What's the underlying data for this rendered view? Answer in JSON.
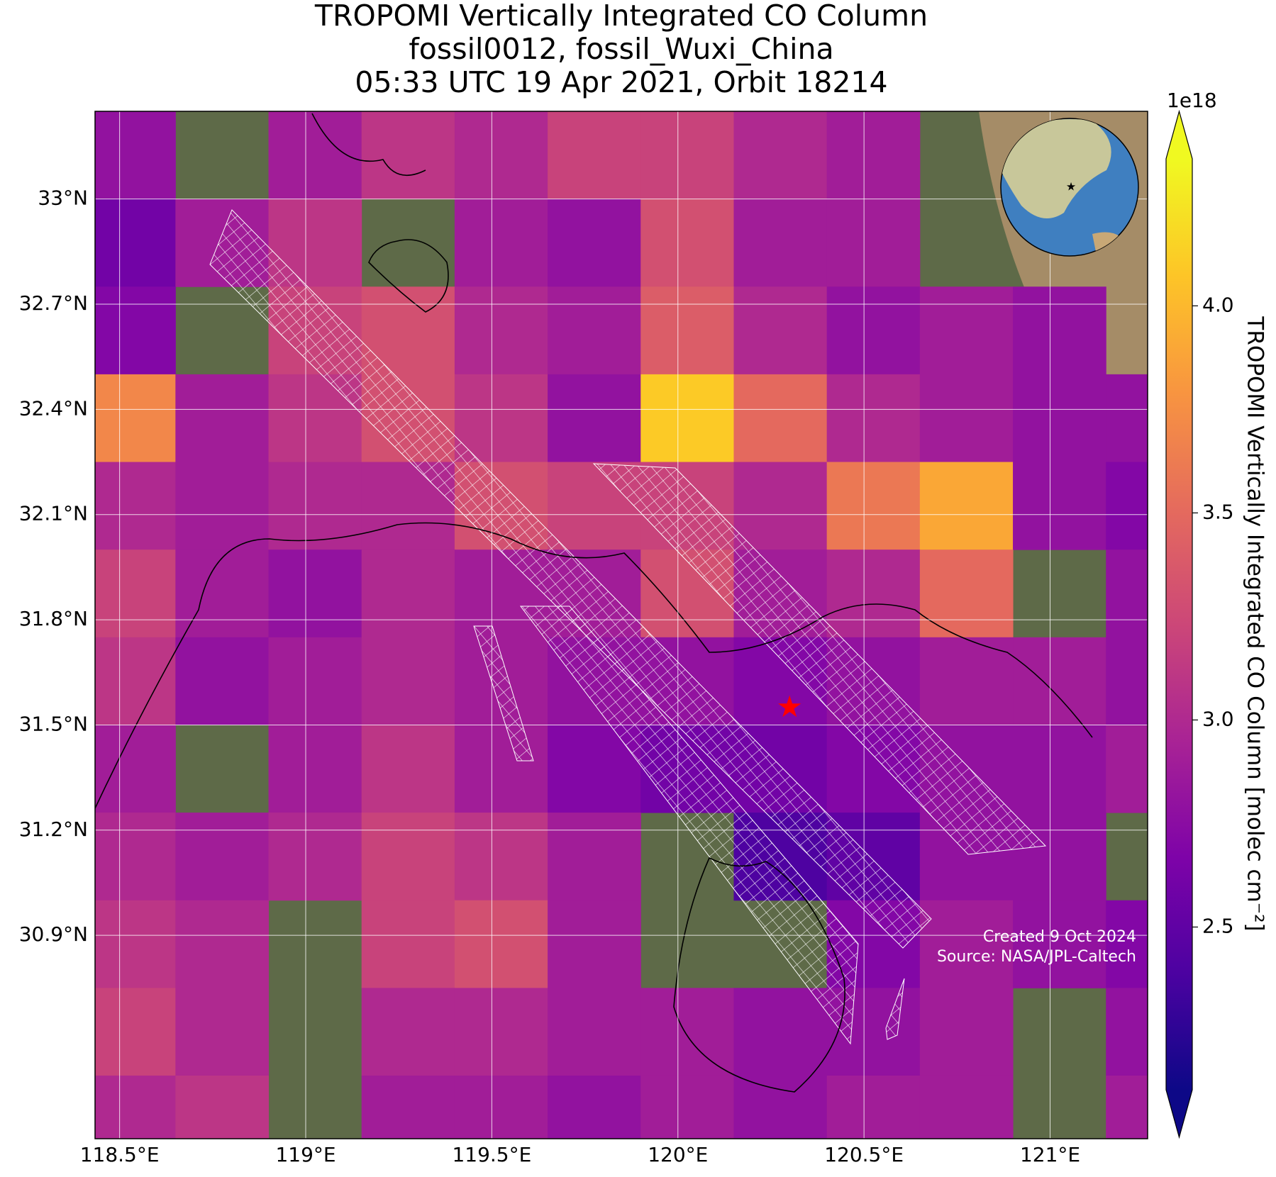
{
  "chart_data": {
    "type": "heatmap-map",
    "title": [
      "TROPOMI Vertically Integrated CO Column",
      "fossil0012, fossil_Wuxi_China",
      "05:33 UTC 19 Apr 2021, Orbit 18214"
    ],
    "xlim": [
      118.434,
      121.262
    ],
    "ylim": [
      30.32,
      33.25
    ],
    "xticks": [
      {
        "value": 118.5,
        "label": "118.5°E"
      },
      {
        "value": 119,
        "label": "119°E"
      },
      {
        "value": 119.5,
        "label": "119.5°E"
      },
      {
        "value": 120,
        "label": "120°E"
      },
      {
        "value": 120.5,
        "label": "120.5°E"
      },
      {
        "value": 121,
        "label": "121°E"
      }
    ],
    "yticks": [
      {
        "value": 30.9,
        "label": "30.9°N"
      },
      {
        "value": 31.2,
        "label": "31.2°N"
      },
      {
        "value": 31.5,
        "label": "31.5°N"
      },
      {
        "value": 31.8,
        "label": "31.8°N"
      },
      {
        "value": 32.1,
        "label": "32.1°N"
      },
      {
        "value": 32.4,
        "label": "32.4°N"
      },
      {
        "value": 32.7,
        "label": "32.7°N"
      },
      {
        "value": 33,
        "label": "33°N"
      }
    ],
    "grid": true,
    "lon_edges": [
      118.4,
      118.65,
      118.9,
      119.15,
      119.4,
      119.65,
      119.9,
      120.15,
      120.4,
      120.65,
      120.9,
      121.15,
      121.4
    ],
    "lat_edges": [
      33.25,
      33.0,
      32.75,
      32.5,
      32.25,
      32.0,
      31.75,
      31.5,
      31.25,
      31.0,
      30.75,
      30.5,
      30.25
    ],
    "values": [
      [
        2.8,
        null,
        2.9,
        3.1,
        3.0,
        3.2,
        3.2,
        3.0,
        2.9,
        null,
        null,
        null
      ],
      [
        2.6,
        2.9,
        3.1,
        null,
        2.9,
        2.8,
        3.3,
        2.9,
        2.9,
        null,
        null,
        null
      ],
      [
        2.7,
        null,
        3.2,
        3.3,
        3.0,
        2.9,
        3.4,
        3.0,
        2.8,
        2.9,
        2.8,
        null
      ],
      [
        3.7,
        2.9,
        3.1,
        3.3,
        3.1,
        2.8,
        4.1,
        3.5,
        3.0,
        2.9,
        2.8,
        2.8
      ],
      [
        3.0,
        2.9,
        3.0,
        3.0,
        3.3,
        3.2,
        3.2,
        3.0,
        3.6,
        3.9,
        2.8,
        2.7
      ],
      [
        3.2,
        2.9,
        2.8,
        3.0,
        2.9,
        2.9,
        3.3,
        2.9,
        3.0,
        3.5,
        null,
        2.8
      ],
      [
        3.1,
        2.8,
        2.9,
        3.0,
        2.9,
        2.8,
        2.8,
        2.7,
        2.8,
        2.9,
        2.9,
        2.8
      ],
      [
        2.9,
        null,
        2.9,
        3.1,
        2.9,
        2.7,
        2.6,
        2.6,
        2.7,
        2.8,
        2.8,
        2.9
      ],
      [
        3.0,
        2.9,
        3.0,
        3.2,
        3.1,
        2.9,
        null,
        2.4,
        2.5,
        2.8,
        2.8,
        null
      ],
      [
        3.1,
        3.0,
        null,
        3.2,
        3.3,
        2.9,
        null,
        null,
        2.7,
        2.9,
        2.8,
        2.7
      ],
      [
        3.2,
        3.0,
        null,
        3.0,
        3.0,
        2.9,
        2.9,
        2.8,
        2.8,
        2.9,
        null,
        2.8
      ],
      [
        3.0,
        3.1,
        null,
        2.9,
        2.9,
        2.8,
        2.9,
        2.8,
        2.9,
        2.9,
        null,
        2.9
      ]
    ],
    "colormap": "plasma",
    "colorbar": {
      "label": "TROPOMI Vertically Integrated CO Column [molec cm⁻²]",
      "offset_label": "1e18",
      "lim": [
        2.107,
        4.355
      ],
      "ticks": [
        2.5,
        {
          "value": 3,
          "label": "3.0"
        },
        {
          "value": 3.5,
          "label": "3.5"
        },
        {
          "value": 4,
          "label": "4.0"
        }
      ],
      "extend": "both"
    },
    "site": {
      "lon": 120.3,
      "lat": 31.55,
      "color": "#ff0000"
    },
    "annotations": [
      "Created 9 Oct 2024",
      "Source: NASA/JPL-Caltech"
    ]
  }
}
